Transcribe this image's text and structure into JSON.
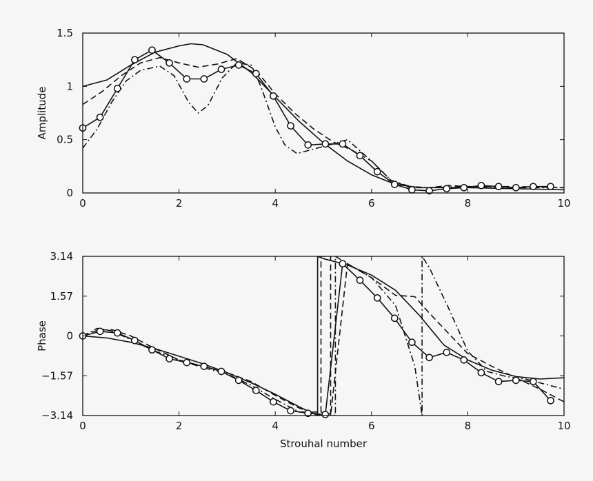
{
  "chart_data": [
    {
      "type": "line",
      "ylabel": "Amplitude",
      "xlim": [
        0,
        10
      ],
      "ylim": [
        0,
        1.5
      ],
      "xticks": [
        "0",
        "2",
        "4",
        "6",
        "8",
        "10"
      ],
      "xtick_values": [
        0,
        2,
        4,
        6,
        8,
        10
      ],
      "yticks": [
        "0",
        "0.5",
        "1",
        "1.5"
      ],
      "ytick_values": [
        0,
        0.5,
        1,
        1.5
      ],
      "grid": false,
      "series": [
        {
          "style": "solid",
          "x": [
            0,
            0.5,
            1,
            1.5,
            2,
            2.25,
            2.5,
            3,
            3.5,
            4,
            4.5,
            5,
            5.5,
            6,
            6.5,
            7,
            7.5,
            8,
            9,
            10
          ],
          "y": [
            1.0,
            1.06,
            1.2,
            1.32,
            1.38,
            1.4,
            1.39,
            1.3,
            1.13,
            0.9,
            0.67,
            0.47,
            0.3,
            0.17,
            0.08,
            0.05,
            0.05,
            0.05,
            0.04,
            0.03
          ]
        },
        {
          "style": "dashed",
          "x": [
            0,
            0.4,
            0.8,
            1.2,
            1.6,
            2.0,
            2.4,
            2.8,
            3.2,
            3.6,
            4.0,
            4.4,
            4.8,
            5.2,
            5.6,
            6.0,
            6.4,
            6.8,
            7.2,
            7.6,
            8.0,
            9.0,
            10.0
          ],
          "y": [
            0.83,
            0.95,
            1.1,
            1.22,
            1.27,
            1.22,
            1.18,
            1.21,
            1.26,
            1.15,
            0.93,
            0.75,
            0.6,
            0.48,
            0.4,
            0.3,
            0.12,
            0.05,
            0.05,
            0.07,
            0.06,
            0.06,
            0.05
          ]
        },
        {
          "style": "dash-dot",
          "x": [
            0,
            0.3,
            0.6,
            0.9,
            1.2,
            1.6,
            1.9,
            2.2,
            2.4,
            2.6,
            2.9,
            3.2,
            3.5,
            3.7,
            4.0,
            4.2,
            4.45,
            4.7,
            4.95,
            5.2,
            5.5,
            6.0,
            6.4,
            6.8,
            7.2,
            8.0,
            9.0,
            10.0
          ],
          "y": [
            0.42,
            0.6,
            0.85,
            1.05,
            1.15,
            1.19,
            1.1,
            0.85,
            0.75,
            0.82,
            1.08,
            1.22,
            1.2,
            1.0,
            0.62,
            0.45,
            0.37,
            0.4,
            0.43,
            0.46,
            0.5,
            0.3,
            0.12,
            0.06,
            0.05,
            0.06,
            0.05,
            0.05
          ]
        },
        {
          "style": "solid-circles",
          "x": [
            0,
            0.36,
            0.72,
            1.08,
            1.44,
            1.8,
            2.16,
            2.52,
            2.88,
            3.24,
            3.6,
            3.96,
            4.32,
            4.68,
            5.04,
            5.4,
            5.76,
            6.12,
            6.48,
            6.84,
            7.2,
            7.56,
            7.92,
            8.28,
            8.64,
            9.0,
            9.36,
            9.72
          ],
          "y": [
            0.61,
            0.71,
            0.98,
            1.25,
            1.34,
            1.22,
            1.07,
            1.07,
            1.16,
            1.2,
            1.12,
            0.91,
            0.63,
            0.45,
            0.46,
            0.46,
            0.35,
            0.2,
            0.08,
            0.03,
            0.02,
            0.04,
            0.05,
            0.07,
            0.06,
            0.05,
            0.06,
            0.06
          ],
          "markers": true
        }
      ]
    },
    {
      "type": "line",
      "xlabel": "Strouhal number",
      "ylabel": "Phase",
      "xlim": [
        0,
        10
      ],
      "ylim": [
        -3.14,
        3.14
      ],
      "xticks": [
        "0",
        "2",
        "4",
        "6",
        "8",
        "10"
      ],
      "xtick_values": [
        0,
        2,
        4,
        6,
        8,
        10
      ],
      "yticks": [
        "−3.14",
        "−1.57",
        "0",
        "1.57",
        "3.14"
      ],
      "ytick_values": [
        -3.14,
        -1.57,
        0,
        1.57,
        3.14
      ],
      "grid": false,
      "series": [
        {
          "style": "solid",
          "x": [
            0,
            0.5,
            1,
            1.5,
            2,
            2.5,
            3,
            3.5,
            4,
            4.5,
            4.88,
            4.88,
            5.0,
            5.5,
            6,
            6.5,
            7,
            7.5,
            8,
            8.5,
            9,
            9.5,
            10
          ],
          "y": [
            0,
            -0.08,
            -0.25,
            -0.5,
            -0.8,
            -1.1,
            -1.45,
            -1.85,
            -2.3,
            -2.8,
            -3.14,
            3.14,
            3.05,
            2.8,
            2.4,
            1.8,
            0.8,
            -0.35,
            -0.95,
            -1.35,
            -1.6,
            -1.7,
            -1.65
          ]
        },
        {
          "style": "dashed",
          "x": [
            0,
            0.3,
            0.6,
            1,
            1.5,
            2,
            2.5,
            3,
            3.5,
            4,
            4.5,
            4.95,
            4.95,
            5.15,
            5.15,
            5.5,
            6.0,
            6.5,
            6.9,
            7.2,
            7.6,
            8.0,
            8.5,
            9.0,
            9.5,
            10.0
          ],
          "y": [
            0,
            0.22,
            0.25,
            0.0,
            -0.5,
            -0.95,
            -1.2,
            -1.45,
            -1.8,
            -2.35,
            -2.85,
            -3.14,
            3.14,
            3.14,
            -3.14,
            2.85,
            2.3,
            1.6,
            1.55,
            0.9,
            0.1,
            -0.7,
            -1.2,
            -1.65,
            -2.1,
            -2.6
          ]
        },
        {
          "style": "dash-dot",
          "x": [
            0,
            0.3,
            0.6,
            1,
            1.5,
            2,
            2.5,
            3,
            3.5,
            4,
            4.5,
            5.0,
            5.25,
            5.25,
            5.5,
            6.0,
            6.5,
            6.9,
            7.05,
            7.05,
            7.2,
            7.6,
            8.0,
            8.4,
            8.8,
            9.2,
            9.6,
            10.0
          ],
          "y": [
            0,
            0.3,
            0.2,
            -0.15,
            -0.6,
            -0.95,
            -1.25,
            -1.5,
            -1.95,
            -2.5,
            -3.0,
            -3.0,
            -3.14,
            3.14,
            2.85,
            2.3,
            1.2,
            -1.2,
            -3.14,
            3.14,
            2.7,
            1.1,
            -0.6,
            -1.4,
            -1.6,
            -1.7,
            -1.9,
            -2.1
          ]
        },
        {
          "style": "solid-circles",
          "x": [
            0,
            0.36,
            0.72,
            1.08,
            1.44,
            1.8,
            2.16,
            2.52,
            2.88,
            3.24,
            3.6,
            3.96,
            4.32,
            4.68,
            5.04,
            5.4,
            5.76,
            6.12,
            6.48,
            6.84,
            7.2,
            7.56,
            7.92,
            8.28,
            8.64,
            9.0,
            9.36,
            9.72
          ],
          "y": [
            0,
            0.18,
            0.12,
            -0.18,
            -0.55,
            -0.9,
            -1.05,
            -1.2,
            -1.4,
            -1.75,
            -2.15,
            -2.6,
            -2.95,
            -3.05,
            -3.1,
            2.85,
            2.2,
            1.5,
            0.7,
            -0.25,
            -0.85,
            -0.65,
            -0.95,
            -1.45,
            -1.8,
            -1.75,
            -1.8,
            -2.55
          ],
          "markers": true
        }
      ]
    }
  ]
}
